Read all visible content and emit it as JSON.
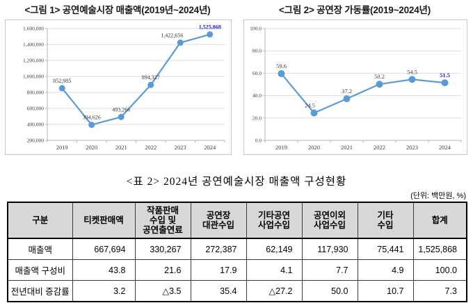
{
  "figures": [
    {
      "title": "<그림 1> 공연예술시장 매출액(2019년~2024년)"
    },
    {
      "title": "<그림 2> 공연장 가동률(2019~2024년)"
    }
  ],
  "chart_data": [
    {
      "type": "line",
      "title": "<그림 1> 공연예술시장 매출액(2019년~2024년)",
      "categories": [
        "2019",
        "2020",
        "2021",
        "2022",
        "2023",
        "2024"
      ],
      "values": [
        852985,
        394626,
        493266,
        894327,
        1422656,
        1525868
      ],
      "point_labels": [
        "852,985",
        "394,626",
        "493,266",
        "894,327",
        "1,422,656",
        "1,525,868"
      ],
      "xlabel": "",
      "ylabel": "",
      "ylim": [
        200000,
        1600000
      ],
      "ytick_step": 200000,
      "ytick_format": "comma",
      "grid": true,
      "legend": "none",
      "line_color": "#5b9bd5",
      "marker_color": "#5b9bd5",
      "label_color": "#404040",
      "highlight_last_color": "#2323cb",
      "label_dx": [
        0,
        0,
        0,
        0,
        -12,
        0
      ]
    },
    {
      "type": "line",
      "title": "<그림 2> 공연장 가동률(2019~2024년)",
      "categories": [
        "2019",
        "2020",
        "2021",
        "2022",
        "2023",
        "2024"
      ],
      "values": [
        59.6,
        24.5,
        37.2,
        50.2,
        54.5,
        51.5
      ],
      "point_labels": [
        "59.6",
        "24.5",
        "37.2",
        "50.2",
        "54.5",
        "51.5"
      ],
      "xlabel": "",
      "ylabel": "",
      "ylim": [
        0,
        100
      ],
      "ytick_step": 20,
      "ytick_format": "fixed1",
      "grid": true,
      "legend": "none",
      "line_color": "#5b9bd5",
      "marker_color": "#5b9bd5",
      "label_color": "#404040",
      "highlight_last_color": "#2323cb",
      "label_dx": [
        0,
        -6,
        0,
        0,
        0,
        0
      ]
    }
  ],
  "table": {
    "title": "<표 2> 2024년 공연예술시장 매출액 구성현황",
    "unit": "(단위: 백만원, %)",
    "columns": [
      "구분",
      "티켓판매액",
      "작품판매\n수입 및\n공연출연료",
      "공연장\n대관수입",
      "기타공연\n사업수입",
      "공연이외\n사업수입",
      "기타\n수입",
      "합계"
    ],
    "rows": [
      {
        "label": "매출액",
        "cells": [
          "667,694",
          "330,267",
          "272,387",
          "62,149",
          "117,930",
          "75,441",
          "1,525,868"
        ]
      },
      {
        "label": "매출액 구성비",
        "cells": [
          "43.8",
          "21.6",
          "17.9",
          "4.1",
          "7.7",
          "4.9",
          "100.0"
        ]
      },
      {
        "label": "전년대비 증감률",
        "cells": [
          "3.2",
          "△3.5",
          "35.4",
          "△27.2",
          "50.0",
          "10.7",
          "7.3"
        ]
      }
    ]
  }
}
